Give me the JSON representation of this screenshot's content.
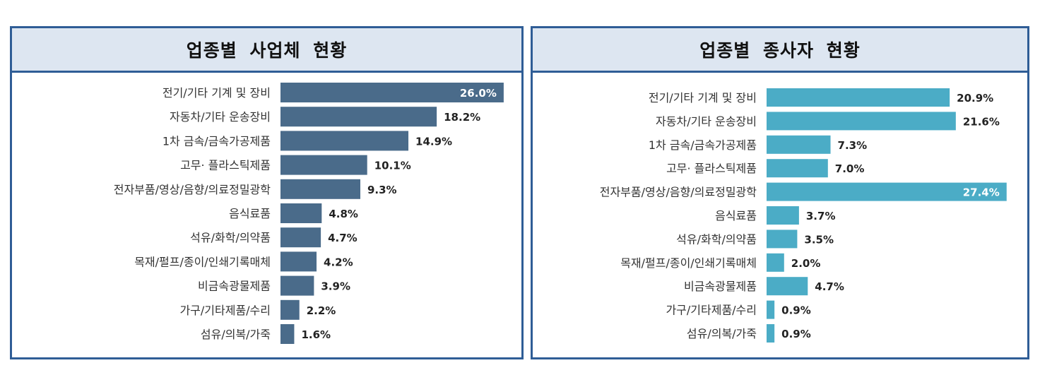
{
  "chart_data": [
    {
      "type": "bar",
      "orientation": "horizontal",
      "title": "업종별 사업체 현황",
      "categories": [
        "전기/기타 기계 및 장비",
        "자동차/기타 운송장비",
        "1차 금속/금속가공제품",
        "고무· 플라스틱제품",
        "전자부품/영상/음향/의료정밀광학",
        "음식료품",
        "석유/화학/의약품",
        "목재/펄프/종이/인쇄기록매체",
        "비금속광물제품",
        "가구/기타제품/수리",
        "섬유/의복/가죽"
      ],
      "values": [
        26.0,
        18.2,
        14.9,
        10.1,
        9.3,
        4.8,
        4.7,
        4.2,
        3.9,
        2.2,
        1.6
      ],
      "labels": [
        "26.0%",
        "18.2%",
        "14.9%",
        "10.1%",
        "9.3%",
        "4.8%",
        "4.7%",
        "4.2%",
        "3.9%",
        "2.2%",
        "1.6%"
      ],
      "unit": "%",
      "color": "#4a6b8a",
      "grid": false
    },
    {
      "type": "bar",
      "orientation": "horizontal",
      "title": "업종별 종사자 현황",
      "categories": [
        "전기/기타 기계 및 장비",
        "자동차/기타 운송장비",
        "1차 금속/금속가공제품",
        "고무· 플라스틱제품",
        "전자부품/영상/음향/의료정밀광학",
        "음식료품",
        "석유/화학/의약품",
        "목재/펄프/종이/인쇄기록매체",
        "비금속광물제품",
        "가구/기타제품/수리",
        "섬유/의복/가죽"
      ],
      "values": [
        20.9,
        21.6,
        7.3,
        7.0,
        27.4,
        3.7,
        3.5,
        2.0,
        4.7,
        0.9,
        0.9
      ],
      "labels": [
        "20.9%",
        "21.6%",
        "7.3%",
        "7.0%",
        "27.4%",
        "3.7%",
        "3.5%",
        "2.0%",
        "4.7%",
        "0.9%",
        "0.9%"
      ],
      "unit": "%",
      "color": "#4bacc6",
      "grid": false
    }
  ]
}
